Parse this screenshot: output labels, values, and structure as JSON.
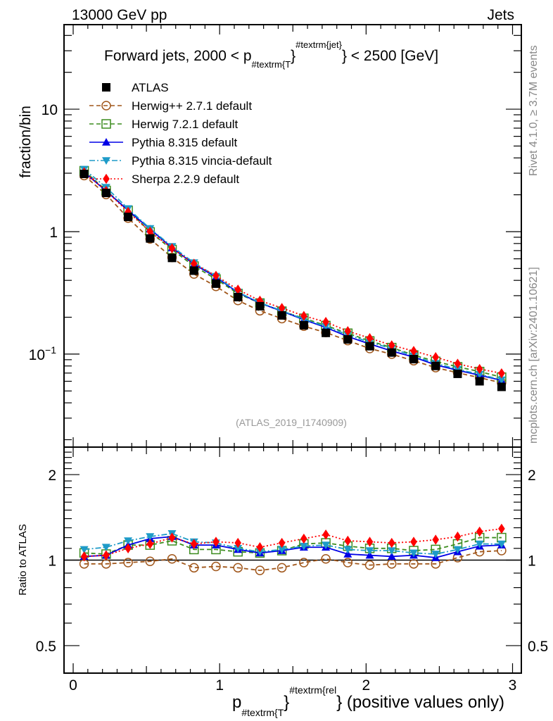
{
  "header": {
    "left": "13000 GeV pp",
    "right": "Jets"
  },
  "side_text": {
    "rivet": "Rivet 4.1.0, ≥ 3.7M events",
    "mcplots": "mcplots.cern.ch [arXiv:2401.10621]"
  },
  "chart_data": [
    {
      "type": "line",
      "panel": "main",
      "title": "Forward jets, 2000 < p_{#textrm{T}}^{#textrm{jet}} < 2500 [GeV]",
      "title_parts": {
        "pre": "Forward jets, 2000 < p",
        "sub": "#textrm{T",
        "sup": "#textrm{jet}",
        "post": "} < 2500 [GeV]"
      },
      "ylabel": "fraction/bin",
      "yscale": "log",
      "ylim": [
        0.0174,
        49
      ],
      "xlim": [
        -0.0625,
        3.06
      ],
      "yticks": [
        {
          "v": 0.1,
          "label": "10^{-1}"
        },
        {
          "v": 1,
          "label": "1"
        },
        {
          "v": 10,
          "label": "10"
        }
      ],
      "analysis_tag": "(ATLAS_2019_I1740909)",
      "x": [
        0.075,
        0.225,
        0.375,
        0.525,
        0.675,
        0.825,
        0.975,
        1.125,
        1.275,
        1.425,
        1.575,
        1.725,
        1.875,
        2.025,
        2.175,
        2.325,
        2.475,
        2.625,
        2.775,
        2.925
      ],
      "series": [
        {
          "name": "ATLAS",
          "marker": "square-filled",
          "color": "#000000",
          "line": "none",
          "values": [
            2.96,
            2.07,
            1.32,
            0.88,
            0.61,
            0.48,
            0.376,
            0.292,
            0.246,
            0.207,
            0.172,
            0.149,
            0.132,
            0.116,
            0.103,
            0.091,
            0.08,
            0.069,
            0.06,
            0.054
          ]
        },
        {
          "name": "Herwig++ 2.7.1 default",
          "marker": "circle-open",
          "color": "#a0561a",
          "line": "dashed",
          "values": [
            2.87,
            2.01,
            1.29,
            0.871,
            0.616,
            0.451,
            0.357,
            0.274,
            0.226,
            0.195,
            0.169,
            0.15,
            0.129,
            0.111,
            0.0999,
            0.0883,
            0.0776,
            0.0704,
            0.0642,
            0.0583
          ]
        },
        {
          "name": "Herwig 7.2.1 default",
          "marker": "square-open",
          "color": "#3c8c1e",
          "line": "dashed",
          "values": [
            3.14,
            2.17,
            1.49,
            0.994,
            0.714,
            0.523,
            0.41,
            0.312,
            0.261,
            0.224,
            0.196,
            0.171,
            0.148,
            0.128,
            0.113,
            0.0983,
            0.0872,
            0.0787,
            0.072,
            0.0648
          ]
        },
        {
          "name": "Pythia 8.315 default",
          "marker": "triangle-up",
          "color": "#0000e6",
          "line": "solid",
          "values": [
            3.05,
            2.15,
            1.49,
            1.05,
            0.738,
            0.542,
            0.425,
            0.318,
            0.261,
            0.224,
            0.191,
            0.165,
            0.139,
            0.121,
            0.106,
            0.0946,
            0.0816,
            0.0738,
            0.0672,
            0.061
          ]
        },
        {
          "name": "Pythia 8.315 vincia-default",
          "marker": "triangle-down",
          "color": "#1e9bc8",
          "line": "dashdot",
          "values": [
            3.23,
            2.3,
            1.54,
            1.06,
            0.756,
            0.557,
            0.432,
            0.321,
            0.263,
            0.226,
            0.193,
            0.168,
            0.144,
            0.125,
            0.111,
            0.0965,
            0.084,
            0.0752,
            0.0684,
            0.0616
          ]
        },
        {
          "name": "Sherpa 2.2.9 default",
          "marker": "diamond",
          "color": "#ff0000",
          "line": "dotted",
          "values": [
            3.05,
            2.15,
            1.45,
            1.0,
            0.732,
            0.547,
            0.436,
            0.336,
            0.273,
            0.238,
            0.205,
            0.183,
            0.154,
            0.135,
            0.118,
            0.106,
            0.0944,
            0.0835,
            0.0756,
            0.0697
          ]
        }
      ],
      "legend": "top-left"
    },
    {
      "type": "line",
      "panel": "ratio",
      "ylabel": "Ratio to ATLAS",
      "yscale": "log",
      "ylim": [
        0.4,
        2.5
      ],
      "yticks": [
        {
          "v": 0.5,
          "label": "0.5"
        },
        {
          "v": 1,
          "label": "1"
        },
        {
          "v": 2,
          "label": "2"
        }
      ],
      "xlabel_parts": {
        "main": "p",
        "sub": "#textrm{T",
        "sup": "#textrm{rel",
        "post": "} (positive values only)"
      },
      "xticks": [
        {
          "v": 0,
          "label": "0"
        },
        {
          "v": 1,
          "label": "1"
        },
        {
          "v": 2,
          "label": "2"
        },
        {
          "v": 3,
          "label": "3"
        }
      ],
      "series": [
        {
          "name": "Herwig++ 2.7.1 default",
          "values": [
            0.97,
            0.97,
            0.98,
            0.99,
            1.01,
            0.94,
            0.95,
            0.94,
            0.92,
            0.94,
            0.98,
            1.01,
            0.98,
            0.96,
            0.97,
            0.97,
            0.97,
            1.02,
            1.07,
            1.08
          ]
        },
        {
          "name": "Herwig 7.2.1 default",
          "values": [
            1.06,
            1.05,
            1.13,
            1.13,
            1.17,
            1.09,
            1.09,
            1.07,
            1.06,
            1.08,
            1.14,
            1.15,
            1.12,
            1.1,
            1.1,
            1.08,
            1.09,
            1.14,
            1.2,
            1.2
          ]
        },
        {
          "name": "Pythia 8.315 default",
          "values": [
            1.03,
            1.04,
            1.13,
            1.19,
            1.21,
            1.13,
            1.13,
            1.09,
            1.06,
            1.08,
            1.11,
            1.11,
            1.05,
            1.04,
            1.03,
            1.04,
            1.02,
            1.07,
            1.12,
            1.13
          ]
        },
        {
          "name": "Pythia 8.315 vincia-default",
          "values": [
            1.09,
            1.11,
            1.17,
            1.21,
            1.24,
            1.16,
            1.15,
            1.1,
            1.07,
            1.09,
            1.12,
            1.13,
            1.09,
            1.08,
            1.08,
            1.06,
            1.05,
            1.09,
            1.14,
            1.14
          ]
        },
        {
          "name": "Sherpa 2.2.9 default",
          "values": [
            1.03,
            1.04,
            1.1,
            1.14,
            1.2,
            1.14,
            1.16,
            1.15,
            1.11,
            1.15,
            1.19,
            1.23,
            1.17,
            1.16,
            1.15,
            1.16,
            1.18,
            1.21,
            1.26,
            1.29
          ]
        }
      ]
    }
  ]
}
